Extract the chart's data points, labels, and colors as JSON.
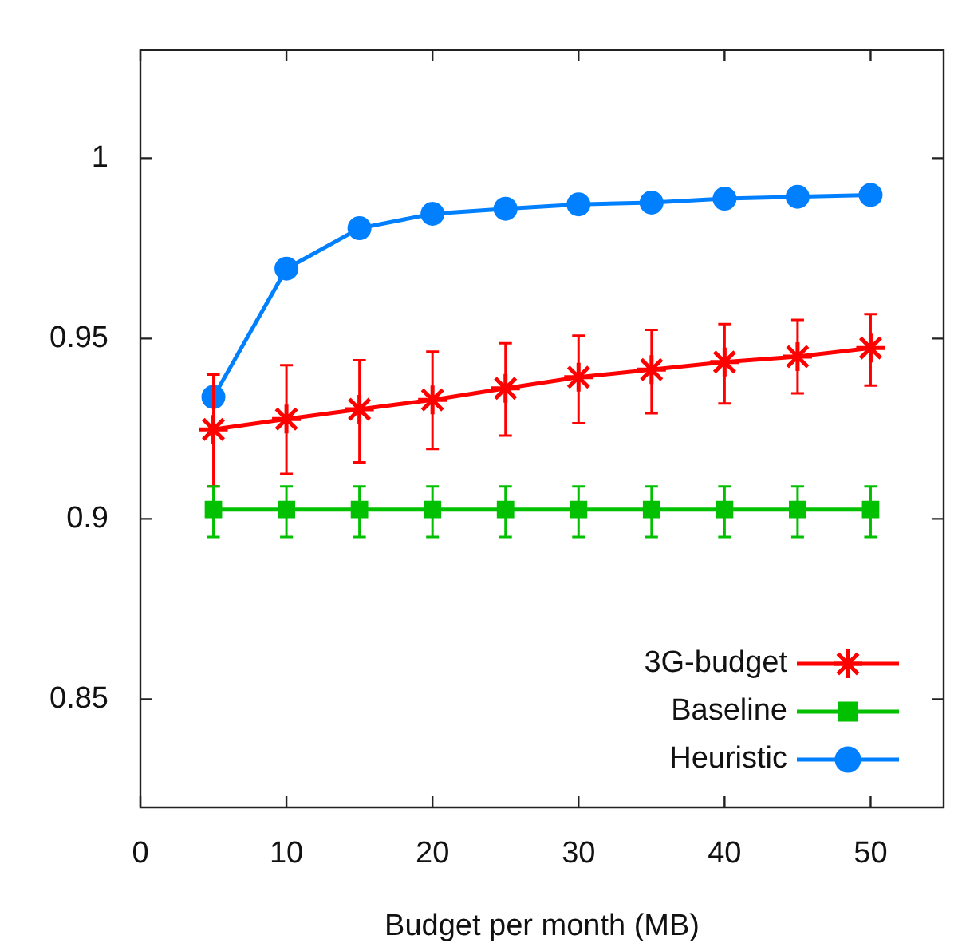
{
  "chart_data": {
    "type": "line",
    "xlabel": "Budget per month (MB)",
    "x": [
      5,
      10,
      15,
      20,
      25,
      30,
      35,
      40,
      45,
      50
    ],
    "series": [
      {
        "name": "3G-budget",
        "color": "#ff0000",
        "marker": "cross",
        "values": [
          0.9248,
          0.9277,
          0.9304,
          0.933,
          0.9362,
          0.9393,
          0.9414,
          0.9435,
          0.945,
          0.9474
        ],
        "errors": [
          [
            0.909,
            0.94
          ],
          [
            0.9125,
            0.9426
          ],
          [
            0.9157,
            0.944
          ],
          [
            0.9194,
            0.9464
          ],
          [
            0.9231,
            0.9487
          ],
          [
            0.9265,
            0.9508
          ],
          [
            0.9293,
            0.9524
          ],
          [
            0.932,
            0.954
          ],
          [
            0.9348,
            0.9552
          ],
          [
            0.937,
            0.9568
          ]
        ]
      },
      {
        "name": "Baseline",
        "color": "#00c000",
        "marker": "square",
        "values": [
          0.9026,
          0.9026,
          0.9026,
          0.9026,
          0.9026,
          0.9026,
          0.9026,
          0.9026,
          0.9026,
          0.9026
        ],
        "errors": [
          [
            0.895,
            0.909
          ],
          [
            0.895,
            0.909
          ],
          [
            0.895,
            0.909
          ],
          [
            0.895,
            0.909
          ],
          [
            0.895,
            0.909
          ],
          [
            0.895,
            0.909
          ],
          [
            0.895,
            0.909
          ],
          [
            0.895,
            0.909
          ],
          [
            0.895,
            0.909
          ],
          [
            0.895,
            0.909
          ]
        ]
      },
      {
        "name": "Heuristic",
        "color": "#0080ff",
        "marker": "circle",
        "values": [
          0.9338,
          0.9694,
          0.9806,
          0.9846,
          0.986,
          0.9872,
          0.9877,
          0.9888,
          0.9893,
          0.9898
        ]
      }
    ],
    "xlim": [
      0,
      55
    ],
    "xticks": [
      0,
      10,
      20,
      30,
      40,
      50
    ],
    "ylim": [
      0.82,
      1.03
    ],
    "yticks": [
      0.85,
      0.9,
      0.95,
      1
    ],
    "grid": false,
    "legend": "bottom right",
    "line_style": "solid"
  }
}
